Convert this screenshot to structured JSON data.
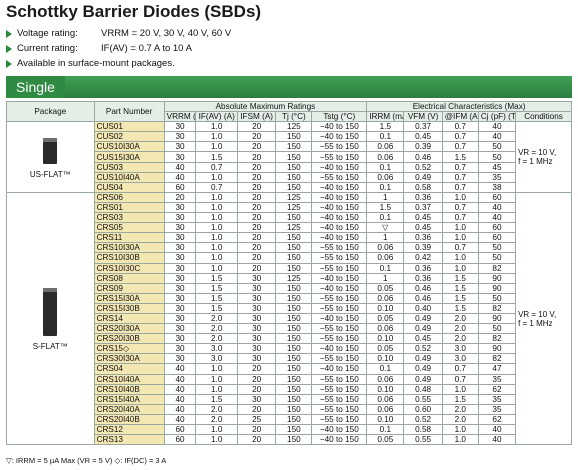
{
  "title": "Schottky Barrier Diodes (SBDs)",
  "bullets": [
    {
      "label": "Voltage rating:",
      "value": "VRRM = 20 V, 30 V, 40 V, 60 V"
    },
    {
      "label": "Current rating:",
      "value": "IF(AV) = 0.7 A to 10 A"
    },
    {
      "label": "",
      "value": "Available in surface-mount packages."
    }
  ],
  "section": "Single",
  "table": {
    "headers": {
      "package": "Package",
      "part": "Part Number",
      "abs_group": "Absolute Maximum Ratings",
      "elec_group": "Electrical Characteristics (Max)",
      "abs_cols": [
        "VRRM (V)",
        "IF(AV) (A)",
        "IFSM (A)",
        "Tj (°C)",
        "Tstg (°C)"
      ],
      "elec_cols": [
        "IRRM (mA)",
        "VFM (V)",
        "@IFM (A)",
        "Cj (pF) (Typ.)"
      ],
      "conditions": "Conditions"
    },
    "groups": [
      {
        "package": "US-FLAT™",
        "conditions": [
          "VR = 10 V,",
          "f = 1 MHz"
        ],
        "rows": [
          [
            "CUS01",
            "30",
            "1.0",
            "20",
            "125",
            "−40 to 150",
            "1.5",
            "0.37",
            "0.7",
            "40"
          ],
          [
            "CUS02",
            "30",
            "1.0",
            "20",
            "150",
            "−40 to 150",
            "0.1",
            "0.45",
            "0.7",
            "40"
          ],
          [
            "CUS10I30A",
            "30",
            "1.0",
            "20",
            "150",
            "−55 to 150",
            "0.06",
            "0.39",
            "0.7",
            "50"
          ],
          [
            "CUS15I30A",
            "30",
            "1.5",
            "20",
            "150",
            "−55 to 150",
            "0.06",
            "0.46",
            "1.5",
            "50"
          ],
          [
            "CUS03",
            "40",
            "0.7",
            "20",
            "150",
            "−40 to 150",
            "0.1",
            "0.52",
            "0.7",
            "45"
          ],
          [
            "CUS10I40A",
            "40",
            "1.0",
            "20",
            "150",
            "−55 to 150",
            "0.06",
            "0.49",
            "0.7",
            "35"
          ],
          [
            "CUS04",
            "60",
            "0.7",
            "20",
            "150",
            "−40 to 150",
            "0.1",
            "0.58",
            "0.7",
            "38"
          ]
        ]
      },
      {
        "package": "S-FLAT™",
        "conditions": [
          "VR = 10 V,",
          "f = 1 MHz"
        ],
        "rows": [
          [
            "CRS06",
            "20",
            "1.0",
            "20",
            "125",
            "−40 to 150",
            "1",
            "0.36",
            "1.0",
            "60"
          ],
          [
            "CRS01",
            "30",
            "1.0",
            "20",
            "125",
            "−40 to 150",
            "1.5",
            "0.37",
            "0.7",
            "40"
          ],
          [
            "CRS03",
            "30",
            "1.0",
            "20",
            "150",
            "−40 to 150",
            "0.1",
            "0.45",
            "0.7",
            "40"
          ],
          [
            "CRS05",
            "30",
            "1.0",
            "20",
            "125",
            "−40 to 150",
            "▽",
            "0.45",
            "1.0",
            "60"
          ],
          [
            "CRS11",
            "30",
            "1.0",
            "20",
            "150",
            "−40 to 150",
            "1",
            "0.36",
            "1.0",
            "60"
          ],
          [
            "CRS10I30A",
            "30",
            "1.0",
            "20",
            "150",
            "−55 to 150",
            "0.06",
            "0.39",
            "0.7",
            "50"
          ],
          [
            "CRS10I30B",
            "30",
            "1.0",
            "20",
            "150",
            "−55 to 150",
            "0.06",
            "0.42",
            "1.0",
            "50"
          ],
          [
            "CRS10I30C",
            "30",
            "1.0",
            "20",
            "150",
            "−55 to 150",
            "0.1",
            "0.36",
            "1.0",
            "82"
          ],
          [
            "CRS08",
            "30",
            "1.5",
            "30",
            "125",
            "−40 to 150",
            "1",
            "0.36",
            "1.5",
            "90"
          ],
          [
            "CRS09",
            "30",
            "1.5",
            "30",
            "150",
            "−40 to 150",
            "0.05",
            "0.46",
            "1.5",
            "90"
          ],
          [
            "CRS15I30A",
            "30",
            "1.5",
            "30",
            "150",
            "−55 to 150",
            "0.06",
            "0.46",
            "1.5",
            "50"
          ],
          [
            "CRS15I30B",
            "30",
            "1.5",
            "30",
            "150",
            "−55 to 150",
            "0.10",
            "0.40",
            "1.5",
            "82"
          ],
          [
            "CRS14",
            "30",
            "2.0",
            "30",
            "150",
            "−40 to 150",
            "0.05",
            "0.49",
            "2.0",
            "90"
          ],
          [
            "CRS20I30A",
            "30",
            "2.0",
            "30",
            "150",
            "−55 to 150",
            "0.06",
            "0.49",
            "2.0",
            "50"
          ],
          [
            "CRS20I30B",
            "30",
            "2.0",
            "30",
            "150",
            "−55 to 150",
            "0.10",
            "0.45",
            "2.0",
            "82"
          ],
          [
            "CRS15◇",
            "30",
            "3.0",
            "30",
            "150",
            "−40 to 150",
            "0.05",
            "0.52",
            "3.0",
            "90"
          ],
          [
            "CRS30I30A",
            "30",
            "3.0",
            "30",
            "150",
            "−55 to 150",
            "0.10",
            "0.49",
            "3.0",
            "82"
          ],
          [
            "CRS04",
            "40",
            "1.0",
            "20",
            "150",
            "−40 to 150",
            "0.1",
            "0.49",
            "0.7",
            "47"
          ],
          [
            "CRS10I40A",
            "40",
            "1.0",
            "20",
            "150",
            "−55 to 150",
            "0.06",
            "0.49",
            "0.7",
            "35"
          ],
          [
            "CRS10I40B",
            "40",
            "1.0",
            "20",
            "150",
            "−55 to 150",
            "0.10",
            "0.48",
            "1.0",
            "62"
          ],
          [
            "CRS15I40A",
            "40",
            "1.5",
            "30",
            "150",
            "−55 to 150",
            "0.06",
            "0.55",
            "1.5",
            "35"
          ],
          [
            "CRS20I40A",
            "40",
            "2.0",
            "20",
            "150",
            "−55 to 150",
            "0.06",
            "0.60",
            "2.0",
            "35"
          ],
          [
            "CRS20I40B",
            "40",
            "2.0",
            "25",
            "150",
            "−55 to 150",
            "0.10",
            "0.52",
            "2.0",
            "62"
          ],
          [
            "CRS12",
            "60",
            "1.0",
            "20",
            "150",
            "−40 to 150",
            "0.1",
            "0.58",
            "1.0",
            "40"
          ],
          [
            "CRS13",
            "60",
            "1.0",
            "20",
            "150",
            "−40 to 150",
            "0.05",
            "0.55",
            "1.0",
            "40"
          ]
        ]
      }
    ]
  },
  "footnote": "▽: IRRM = 5 µA Max (VR = 5 V)  ◇: IF(DC) = 3 A",
  "colors": {
    "accent_green": "#2f8a43",
    "part_bg": "#f3e7b4",
    "header_bg": "#e4eee7"
  }
}
